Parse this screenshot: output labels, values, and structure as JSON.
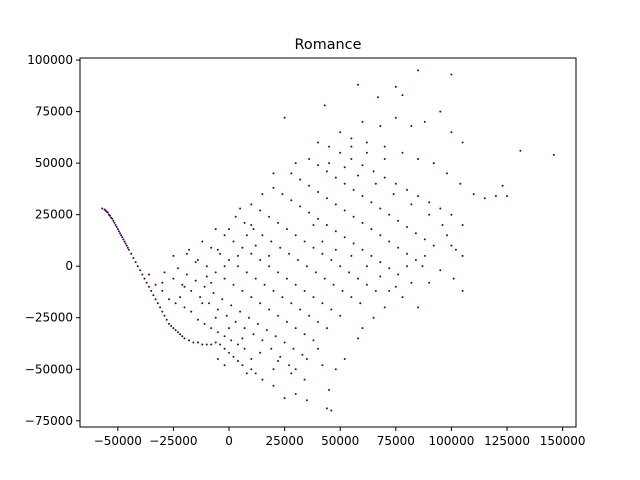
{
  "chart_data": {
    "type": "scatter",
    "title": "Romance",
    "xlabel": "",
    "ylabel": "",
    "xlim": [
      -67000,
      156000
    ],
    "ylim": [
      -78000,
      101000
    ],
    "grid": false,
    "marker_color": "#440154",
    "x_ticks": [
      {
        "value": -50000,
        "label": "−50000"
      },
      {
        "value": -25000,
        "label": "−25000"
      },
      {
        "value": 0,
        "label": "0"
      },
      {
        "value": 25000,
        "label": "25000"
      },
      {
        "value": 50000,
        "label": "50000"
      },
      {
        "value": 75000,
        "label": "75000"
      },
      {
        "value": 100000,
        "label": "100000"
      },
      {
        "value": 125000,
        "label": "125000"
      },
      {
        "value": 150000,
        "label": "150000"
      }
    ],
    "y_ticks": [
      {
        "value": -75000,
        "label": "−75000"
      },
      {
        "value": -50000,
        "label": "−50000"
      },
      {
        "value": -25000,
        "label": "−25000"
      },
      {
        "value": 0,
        "label": "0"
      },
      {
        "value": 25000,
        "label": "25000"
      },
      {
        "value": 50000,
        "label": "50000"
      },
      {
        "value": 75000,
        "label": "75000"
      },
      {
        "value": 100000,
        "label": "100000"
      }
    ],
    "points": [
      [
        -57000,
        28000
      ],
      [
        -56000,
        27500
      ],
      [
        -55500,
        27000
      ],
      [
        -55000,
        26500
      ],
      [
        -54500,
        26000
      ],
      [
        -54000,
        25000
      ],
      [
        -53500,
        24500
      ],
      [
        -53000,
        23500
      ],
      [
        -52500,
        23000
      ],
      [
        -52000,
        22000
      ],
      [
        -51500,
        21000
      ],
      [
        -51000,
        20000
      ],
      [
        -50500,
        19000
      ],
      [
        -50000,
        18000
      ],
      [
        -49500,
        17000
      ],
      [
        -49000,
        16000
      ],
      [
        -48500,
        15000
      ],
      [
        -48000,
        14000
      ],
      [
        -47500,
        13000
      ],
      [
        -47000,
        12000
      ],
      [
        -46500,
        11000
      ],
      [
        -46000,
        10000
      ],
      [
        -45500,
        9000
      ],
      [
        -45000,
        8000
      ],
      [
        -44000,
        6000
      ],
      [
        -43000,
        4000
      ],
      [
        -42000,
        2000
      ],
      [
        -41000,
        0
      ],
      [
        -40000,
        -2000
      ],
      [
        -39000,
        -4000
      ],
      [
        -38000,
        -6000
      ],
      [
        -37000,
        -8000
      ],
      [
        -36000,
        -10000
      ],
      [
        -35000,
        -12000
      ],
      [
        -34000,
        -14000
      ],
      [
        -33000,
        -16000
      ],
      [
        -32000,
        -18000
      ],
      [
        -31000,
        -20000
      ],
      [
        -30000,
        -22000
      ],
      [
        -29000,
        -24000
      ],
      [
        -28000,
        -26000
      ],
      [
        -27000,
        -28000
      ],
      [
        -26000,
        -29000
      ],
      [
        -25000,
        -30000
      ],
      [
        -24000,
        -31000
      ],
      [
        -23000,
        -32000
      ],
      [
        -22000,
        -33000
      ],
      [
        -21000,
        -34000
      ],
      [
        -20000,
        -35000
      ],
      [
        -18000,
        -36000
      ],
      [
        -16000,
        -37000
      ],
      [
        -14000,
        -37000
      ],
      [
        -12000,
        -38000
      ],
      [
        -10000,
        -38000
      ],
      [
        -8000,
        -38000
      ],
      [
        -6000,
        -37000
      ],
      [
        -4000,
        -38000
      ],
      [
        -2000,
        -40000
      ],
      [
        0,
        -42000
      ],
      [
        2000,
        -44000
      ],
      [
        4000,
        -46000
      ],
      [
        6000,
        -48000
      ],
      [
        8000,
        -52000
      ],
      [
        10000,
        -50000
      ],
      [
        -36000,
        -4000
      ],
      [
        -33000,
        -9000
      ],
      [
        -30000,
        -12000
      ],
      [
        -27000,
        -16000
      ],
      [
        -24000,
        -18000
      ],
      [
        -20000,
        -20000
      ],
      [
        -17000,
        -22000
      ],
      [
        -14000,
        -26000
      ],
      [
        -11000,
        -28000
      ],
      [
        -8000,
        -30000
      ],
      [
        -5000,
        -32000
      ],
      [
        -2000,
        -34000
      ],
      [
        1000,
        -36000
      ],
      [
        4000,
        -38000
      ],
      [
        7000,
        -40000
      ],
      [
        -29000,
        -3000
      ],
      [
        -25000,
        -6000
      ],
      [
        -21000,
        -9000
      ],
      [
        -17000,
        -12000
      ],
      [
        -13000,
        -15000
      ],
      [
        -9000,
        -18000
      ],
      [
        -5000,
        -21000
      ],
      [
        -1000,
        -24000
      ],
      [
        3000,
        -27000
      ],
      [
        7000,
        -30000
      ],
      [
        11000,
        -33000
      ],
      [
        15000,
        -36000
      ],
      [
        19000,
        -40000
      ],
      [
        23000,
        -44000
      ],
      [
        27000,
        -48000
      ],
      [
        -23000,
        -1000
      ],
      [
        -19000,
        -4000
      ],
      [
        -15000,
        -7000
      ],
      [
        -11000,
        -10000
      ],
      [
        -7000,
        -13000
      ],
      [
        -3000,
        -16000
      ],
      [
        1000,
        -19000
      ],
      [
        5000,
        -22000
      ],
      [
        9000,
        -25000
      ],
      [
        13000,
        -28000
      ],
      [
        17000,
        -31000
      ],
      [
        21000,
        -34000
      ],
      [
        25000,
        -37000
      ],
      [
        29000,
        -40000
      ],
      [
        33000,
        -43000
      ],
      [
        -19000,
        6000
      ],
      [
        -14000,
        3000
      ],
      [
        -10000,
        0
      ],
      [
        -6000,
        -3000
      ],
      [
        -2000,
        -6000
      ],
      [
        2000,
        -9000
      ],
      [
        6000,
        -12000
      ],
      [
        10000,
        -15000
      ],
      [
        14000,
        -18000
      ],
      [
        18000,
        -21000
      ],
      [
        22000,
        -24000
      ],
      [
        26000,
        -27000
      ],
      [
        30000,
        -30000
      ],
      [
        34000,
        -33000
      ],
      [
        38000,
        -36000
      ],
      [
        -12000,
        12000
      ],
      [
        -8000,
        9000
      ],
      [
        -4000,
        6000
      ],
      [
        0,
        3000
      ],
      [
        4000,
        0
      ],
      [
        8000,
        -3000
      ],
      [
        12000,
        -6000
      ],
      [
        16000,
        -9000
      ],
      [
        20000,
        -12000
      ],
      [
        24000,
        -15000
      ],
      [
        28000,
        -18000
      ],
      [
        32000,
        -21000
      ],
      [
        36000,
        -24000
      ],
      [
        40000,
        -27000
      ],
      [
        44000,
        -30000
      ],
      [
        -6000,
        18000
      ],
      [
        -2000,
        15000
      ],
      [
        2000,
        12000
      ],
      [
        6000,
        9000
      ],
      [
        10000,
        6000
      ],
      [
        14000,
        3000
      ],
      [
        18000,
        0
      ],
      [
        22000,
        -3000
      ],
      [
        26000,
        -6000
      ],
      [
        30000,
        -9000
      ],
      [
        34000,
        -12000
      ],
      [
        38000,
        -15000
      ],
      [
        42000,
        -18000
      ],
      [
        46000,
        -21000
      ],
      [
        50000,
        -24000
      ],
      [
        3000,
        24000
      ],
      [
        7000,
        21000
      ],
      [
        11000,
        18000
      ],
      [
        15000,
        15000
      ],
      [
        19000,
        12000
      ],
      [
        23000,
        9000
      ],
      [
        27000,
        6000
      ],
      [
        31000,
        3000
      ],
      [
        35000,
        0
      ],
      [
        39000,
        -3000
      ],
      [
        43000,
        -6000
      ],
      [
        47000,
        -9000
      ],
      [
        51000,
        -12000
      ],
      [
        55000,
        -15000
      ],
      [
        59000,
        -18000
      ],
      [
        10000,
        30000
      ],
      [
        14000,
        27000
      ],
      [
        18000,
        24000
      ],
      [
        22000,
        21000
      ],
      [
        26000,
        18000
      ],
      [
        30000,
        15000
      ],
      [
        34000,
        12000
      ],
      [
        38000,
        9000
      ],
      [
        42000,
        6000
      ],
      [
        46000,
        3000
      ],
      [
        50000,
        0
      ],
      [
        54000,
        -3000
      ],
      [
        58000,
        -6000
      ],
      [
        62000,
        -9000
      ],
      [
        66000,
        -12000
      ],
      [
        20000,
        38000
      ],
      [
        24000,
        35000
      ],
      [
        28000,
        32000
      ],
      [
        32000,
        29000
      ],
      [
        36000,
        26000
      ],
      [
        40000,
        23000
      ],
      [
        44000,
        20000
      ],
      [
        48000,
        17000
      ],
      [
        52000,
        14000
      ],
      [
        56000,
        11000
      ],
      [
        60000,
        8000
      ],
      [
        64000,
        5000
      ],
      [
        68000,
        2000
      ],
      [
        72000,
        -1000
      ],
      [
        76000,
        -4000
      ],
      [
        28000,
        45000
      ],
      [
        32000,
        42000
      ],
      [
        36000,
        39000
      ],
      [
        40000,
        36000
      ],
      [
        44000,
        33000
      ],
      [
        48000,
        30000
      ],
      [
        52000,
        27000
      ],
      [
        56000,
        24000
      ],
      [
        60000,
        21000
      ],
      [
        64000,
        18000
      ],
      [
        68000,
        15000
      ],
      [
        72000,
        12000
      ],
      [
        76000,
        9000
      ],
      [
        80000,
        6000
      ],
      [
        84000,
        3000
      ],
      [
        36000,
        52000
      ],
      [
        40000,
        49000
      ],
      [
        44000,
        46000
      ],
      [
        48000,
        43000
      ],
      [
        52000,
        40000
      ],
      [
        56000,
        37000
      ],
      [
        60000,
        34000
      ],
      [
        64000,
        31000
      ],
      [
        68000,
        28000
      ],
      [
        72000,
        25000
      ],
      [
        76000,
        22000
      ],
      [
        80000,
        19000
      ],
      [
        84000,
        16000
      ],
      [
        88000,
        13000
      ],
      [
        92000,
        10000
      ],
      [
        45000,
        58000
      ],
      [
        50000,
        55000
      ],
      [
        55000,
        52000
      ],
      [
        60000,
        49000
      ],
      [
        65000,
        46000
      ],
      [
        70000,
        43000
      ],
      [
        75000,
        40000
      ],
      [
        80000,
        37000
      ],
      [
        85000,
        34000
      ],
      [
        90000,
        31000
      ],
      [
        95000,
        28000
      ],
      [
        100000,
        25000
      ],
      [
        105000,
        20000
      ],
      [
        98000,
        15000
      ],
      [
        102000,
        8000
      ],
      [
        55000,
        62000
      ],
      [
        62000,
        60000
      ],
      [
        70000,
        58000
      ],
      [
        78000,
        55000
      ],
      [
        85000,
        52000
      ],
      [
        92000,
        50000
      ],
      [
        98000,
        45000
      ],
      [
        104000,
        40000
      ],
      [
        110000,
        35000
      ],
      [
        115000,
        33000
      ],
      [
        60000,
        70000
      ],
      [
        68000,
        68000
      ],
      [
        75000,
        72000
      ],
      [
        82000,
        68000
      ],
      [
        88000,
        70000
      ],
      [
        95000,
        75000
      ],
      [
        100000,
        65000
      ],
      [
        105000,
        60000
      ],
      [
        43000,
        78000
      ],
      [
        58000,
        88000
      ],
      [
        67000,
        82000
      ],
      [
        75000,
        87000
      ],
      [
        78000,
        83000
      ],
      [
        85000,
        95000
      ],
      [
        100000,
        93000
      ],
      [
        120000,
        34000
      ],
      [
        123000,
        39000
      ],
      [
        125000,
        34000
      ],
      [
        131000,
        56000
      ],
      [
        146000,
        54000
      ],
      [
        105000,
        -12000
      ],
      [
        101000,
        -6000
      ],
      [
        95000,
        -2000
      ],
      [
        90000,
        -8000
      ],
      [
        85000,
        -20000
      ],
      [
        65000,
        -25000
      ],
      [
        58000,
        -35000
      ],
      [
        52000,
        -45000
      ],
      [
        48000,
        -50000
      ],
      [
        45000,
        -60000
      ],
      [
        46000,
        -70000
      ],
      [
        44000,
        -69000
      ],
      [
        35000,
        -65000
      ],
      [
        30000,
        -62000
      ],
      [
        25000,
        -64000
      ],
      [
        20000,
        -58000
      ],
      [
        15000,
        -55000
      ],
      [
        12000,
        -52000
      ],
      [
        -2000,
        -48000
      ],
      [
        -5000,
        -45000
      ],
      [
        25000,
        72000
      ],
      [
        30000,
        50000
      ],
      [
        20000,
        45000
      ],
      [
        15000,
        35000
      ],
      [
        10000,
        20000
      ],
      [
        5000,
        28000
      ],
      [
        0,
        18000
      ],
      [
        -5000,
        8000
      ],
      [
        -10000,
        -5000
      ],
      [
        -15000,
        2000
      ],
      [
        -20000,
        -10000
      ],
      [
        -25000,
        5000
      ],
      [
        -30000,
        -8000
      ],
      [
        -18000,
        8000
      ],
      [
        -22000,
        -15000
      ],
      [
        40000,
        -40000
      ],
      [
        35000,
        -45000
      ],
      [
        30000,
        -50000
      ],
      [
        20000,
        -50000
      ],
      [
        10000,
        -45000
      ],
      [
        60000,
        -30000
      ],
      [
        70000,
        -20000
      ],
      [
        75000,
        -10000
      ],
      [
        80000,
        0
      ],
      [
        88000,
        5000
      ],
      [
        40000,
        60000
      ],
      [
        50000,
        65000
      ],
      [
        55000,
        58000
      ],
      [
        62000,
        55000
      ],
      [
        70000,
        52000
      ],
      [
        45000,
        50000
      ],
      [
        52000,
        48000
      ],
      [
        58000,
        44000
      ],
      [
        66000,
        40000
      ],
      [
        74000,
        35000
      ],
      [
        82000,
        30000
      ],
      [
        90000,
        25000
      ],
      [
        96000,
        20000
      ],
      [
        100000,
        10000
      ],
      [
        105000,
        5000
      ],
      [
        38000,
        20000
      ],
      [
        42000,
        12000
      ],
      [
        48000,
        8000
      ],
      [
        55000,
        5000
      ],
      [
        62000,
        0
      ],
      [
        68000,
        -5000
      ],
      [
        72000,
        -12000
      ],
      [
        78000,
        -15000
      ],
      [
        82000,
        -8000
      ],
      [
        87000,
        0
      ],
      [
        18000,
        5000
      ],
      [
        12000,
        10000
      ],
      [
        8000,
        15000
      ],
      [
        4000,
        5000
      ],
      [
        -2000,
        0
      ],
      [
        -8000,
        -8000
      ],
      [
        -12000,
        -18000
      ],
      [
        -6000,
        -25000
      ],
      [
        0,
        -30000
      ],
      [
        6000,
        -35000
      ],
      [
        14000,
        -42000
      ],
      [
        22000,
        -46000
      ],
      [
        28000,
        -52000
      ],
      [
        34000,
        -55000
      ],
      [
        42000,
        -48000
      ]
    ]
  }
}
